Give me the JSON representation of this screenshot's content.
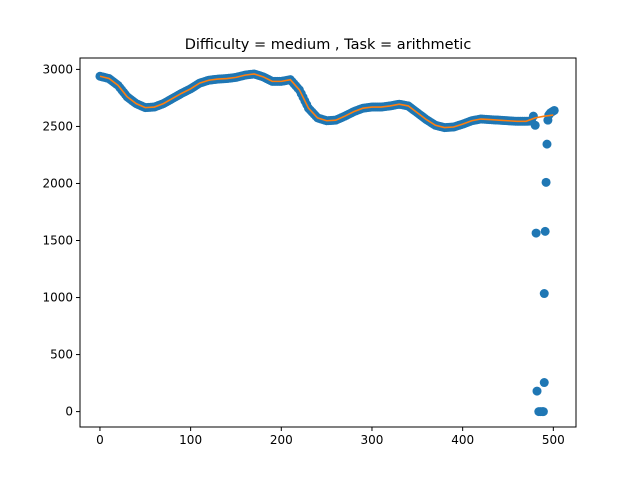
{
  "chart_data": {
    "type": "scatter",
    "title": "Difficulty = medium , Task = arithmetic",
    "xlabel": "",
    "ylabel": "",
    "xlim": [
      -22,
      525
    ],
    "ylim": [
      -135,
      3100
    ],
    "xticks": [
      0,
      100,
      200,
      300,
      400,
      500
    ],
    "yticks": [
      0,
      500,
      1000,
      1500,
      2000,
      2500,
      3000
    ],
    "grid": false,
    "legend": "none",
    "colors": {
      "scatter": "#1f77b4",
      "line": "#ff7f0e"
    },
    "series": [
      {
        "kind": "scatter",
        "profile_x": [
          0,
          10,
          20,
          30,
          40,
          50,
          60,
          70,
          80,
          90,
          100,
          110,
          120,
          130,
          140,
          150,
          160,
          170,
          180,
          190,
          200,
          210,
          220,
          230,
          240,
          250,
          260,
          270,
          280,
          290,
          300,
          310,
          320,
          330,
          340,
          350,
          360,
          370,
          380,
          390,
          400,
          410,
          420,
          430,
          440,
          450,
          460,
          470,
          480
        ],
        "profile_y": [
          2940,
          2920,
          2860,
          2760,
          2700,
          2665,
          2670,
          2700,
          2745,
          2790,
          2830,
          2880,
          2905,
          2915,
          2920,
          2930,
          2950,
          2960,
          2935,
          2895,
          2895,
          2910,
          2820,
          2660,
          2575,
          2550,
          2555,
          2590,
          2630,
          2660,
          2670,
          2670,
          2680,
          2695,
          2680,
          2620,
          2560,
          2510,
          2490,
          2495,
          2520,
          2550,
          2565,
          2560,
          2555,
          2550,
          2545,
          2545,
          2550
        ],
        "outliers": [
          [
            478,
            2590
          ],
          [
            480,
            2510
          ],
          [
            481,
            1565
          ],
          [
            482,
            180
          ],
          [
            484,
            0
          ],
          [
            486,
            0
          ],
          [
            488,
            0
          ],
          [
            489,
            0
          ],
          [
            490,
            1035
          ],
          [
            490,
            255
          ],
          [
            491,
            1580
          ],
          [
            492,
            2010
          ],
          [
            493,
            2345
          ],
          [
            494,
            2555
          ],
          [
            495,
            2600
          ],
          [
            496,
            2610
          ],
          [
            497,
            2620
          ],
          [
            499,
            2630
          ],
          [
            501,
            2640
          ]
        ]
      },
      {
        "kind": "line",
        "x": [
          0,
          10,
          20,
          30,
          40,
          50,
          60,
          70,
          80,
          90,
          100,
          110,
          120,
          130,
          140,
          150,
          160,
          170,
          180,
          190,
          200,
          210,
          220,
          230,
          240,
          250,
          260,
          270,
          280,
          290,
          300,
          310,
          320,
          330,
          340,
          350,
          360,
          370,
          380,
          390,
          400,
          410,
          420,
          430,
          440,
          450,
          460,
          470,
          480,
          490,
          500
        ],
        "y": [
          2940,
          2920,
          2860,
          2760,
          2700,
          2665,
          2670,
          2700,
          2745,
          2790,
          2830,
          2880,
          2905,
          2915,
          2920,
          2930,
          2950,
          2960,
          2935,
          2895,
          2895,
          2910,
          2820,
          2660,
          2575,
          2550,
          2555,
          2590,
          2630,
          2660,
          2670,
          2670,
          2680,
          2695,
          2680,
          2620,
          2560,
          2510,
          2490,
          2495,
          2520,
          2550,
          2565,
          2560,
          2555,
          2550,
          2545,
          2545,
          2575,
          2590,
          2600
        ]
      }
    ]
  }
}
